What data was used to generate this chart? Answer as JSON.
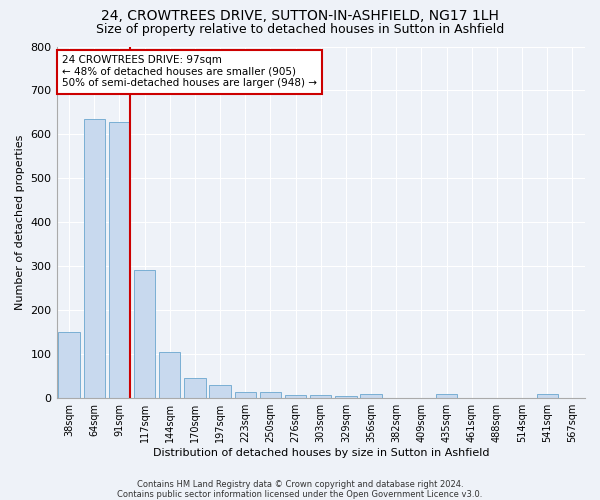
{
  "title": "24, CROWTREES DRIVE, SUTTON-IN-ASHFIELD, NG17 1LH",
  "subtitle": "Size of property relative to detached houses in Sutton in Ashfield",
  "xlabel": "Distribution of detached houses by size in Sutton in Ashfield",
  "ylabel": "Number of detached properties",
  "footnote1": "Contains HM Land Registry data © Crown copyright and database right 2024.",
  "footnote2": "Contains public sector information licensed under the Open Government Licence v3.0.",
  "bar_labels": [
    "38sqm",
    "64sqm",
    "91sqm",
    "117sqm",
    "144sqm",
    "170sqm",
    "197sqm",
    "223sqm",
    "250sqm",
    "276sqm",
    "303sqm",
    "329sqm",
    "356sqm",
    "382sqm",
    "409sqm",
    "435sqm",
    "461sqm",
    "488sqm",
    "514sqm",
    "541sqm",
    "567sqm"
  ],
  "bar_values": [
    150,
    635,
    628,
    290,
    103,
    46,
    30,
    12,
    12,
    7,
    7,
    5,
    8,
    0,
    0,
    8,
    0,
    0,
    0,
    8,
    0
  ],
  "bar_color": "#c8d9ee",
  "bar_edge_color": "#7aafd4",
  "vline_color": "#cc0000",
  "vline_bar_index": 2,
  "annotation_text": "24 CROWTREES DRIVE: 97sqm\n← 48% of detached houses are smaller (905)\n50% of semi-detached houses are larger (948) →",
  "annotation_box_color": "white",
  "annotation_box_edge": "#cc0000",
  "ylim": [
    0,
    800
  ],
  "yticks": [
    0,
    100,
    200,
    300,
    400,
    500,
    600,
    700,
    800
  ],
  "bg_color": "#eef2f8",
  "plot_bg_color": "#eef2f8",
  "grid_color": "#ffffff",
  "title_fontsize": 10,
  "subtitle_fontsize": 9,
  "ylabel_fontsize": 8,
  "xlabel_fontsize": 8
}
